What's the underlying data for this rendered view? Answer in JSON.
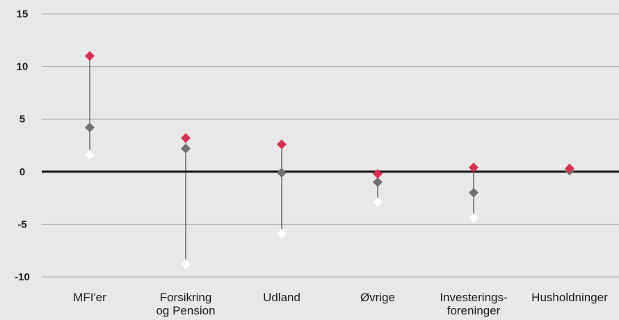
{
  "chart_data": {
    "type": "scatter",
    "title": "",
    "xlabel": "",
    "ylabel": "",
    "ylim": [
      -10,
      15
    ],
    "yticks": [
      15,
      10,
      5,
      0,
      -5,
      -10
    ],
    "grid": true,
    "categories": [
      "MFI'er",
      "Forsikring og Pension",
      "Udland",
      "Øvrige",
      "Investerings-foreninger",
      "Husholdninger"
    ],
    "category_lines": [
      [
        "MFI'er"
      ],
      [
        "Forsikring",
        "og Pension"
      ],
      [
        "Udland"
      ],
      [
        "Øvrige"
      ],
      [
        "Investerings-",
        "foreninger"
      ],
      [
        "Husholdninger"
      ]
    ],
    "series": [
      {
        "color": "#d6304f",
        "values": [
          11.0,
          3.2,
          2.6,
          -0.2,
          0.4,
          0.3
        ]
      },
      {
        "color": "#707070",
        "values": [
          4.2,
          2.2,
          -0.1,
          -1.0,
          -2.0,
          0.1
        ]
      },
      {
        "color": "#ffffff",
        "values": [
          1.6,
          -8.8,
          -5.9,
          -2.9,
          -4.4,
          0.1
        ]
      }
    ]
  }
}
